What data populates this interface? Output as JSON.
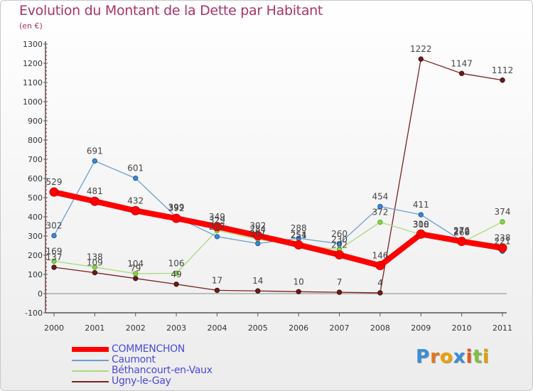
{
  "header": {
    "title": "Evolution du Montant de la Dette par Habitant",
    "subtitle": "(en €)"
  },
  "logo": {
    "letters": [
      "P",
      "r",
      "o",
      "x",
      "i",
      "t",
      "i"
    ],
    "colors": [
      "#3a8fd6",
      "#e07a1f",
      "#f0a000",
      "#3a8fd6",
      "#e05a1f",
      "#7cc243",
      "#e0a000"
    ]
  },
  "chart_data": {
    "type": "line",
    "title": "Evolution du Montant de la Dette par Habitant",
    "subtitle": "(en €)",
    "xlabel": "",
    "ylabel": "",
    "x": [
      "2000",
      "2001",
      "2002",
      "2003",
      "2004",
      "2005",
      "2006",
      "2007",
      "2008",
      "2009",
      "2010",
      "2011"
    ],
    "ylim": [
      -100,
      1300
    ],
    "yticks": [
      -100,
      0,
      100,
      200,
      300,
      400,
      500,
      600,
      700,
      800,
      900,
      1000,
      1100,
      1200,
      1300
    ],
    "grid": false,
    "legend_position": "bottom-left",
    "series": [
      {
        "name": "COMMENCHON",
        "color": "#ff0000",
        "values": [
          529,
          481,
          432,
          392,
          349,
          302,
          254,
          202,
          146,
          310,
          272,
          238
        ],
        "labels": [
          "529",
          "481",
          "432",
          "392",
          "349",
          "302",
          "254",
          "202",
          "146",
          "310",
          "272",
          "238"
        ]
      },
      {
        "name": "Caumont",
        "color": "#6b9fd3",
        "values": [
          302,
          691,
          601,
          399,
          297,
          261,
          288,
          260,
          454,
          411,
          276,
          221
        ],
        "labels": [
          "302",
          "691",
          "601",
          "399",
          "297",
          "261",
          "288",
          "260",
          "454",
          "411",
          "276",
          "221"
        ]
      },
      {
        "name": "Béthancourt-en-Vaux",
        "color": "#a8dc7a",
        "values": [
          169,
          138,
          104,
          106,
          329,
          284,
          251,
          230,
          372,
          308,
          266,
          374
        ],
        "labels": [
          "169",
          "138",
          "104",
          "106",
          "329",
          "284",
          "251",
          "230",
          "372",
          "308",
          "266",
          "374"
        ]
      },
      {
        "name": "Ugny-le-Gay",
        "color": "#7a2121",
        "values": [
          137,
          109,
          79,
          49,
          17,
          14,
          10,
          7,
          4,
          1222,
          1147,
          1112
        ],
        "labels": [
          "137",
          "109",
          "79",
          "49",
          "17",
          "14",
          "10",
          "7",
          "4",
          "1222",
          "1147",
          "1112"
        ]
      }
    ]
  }
}
